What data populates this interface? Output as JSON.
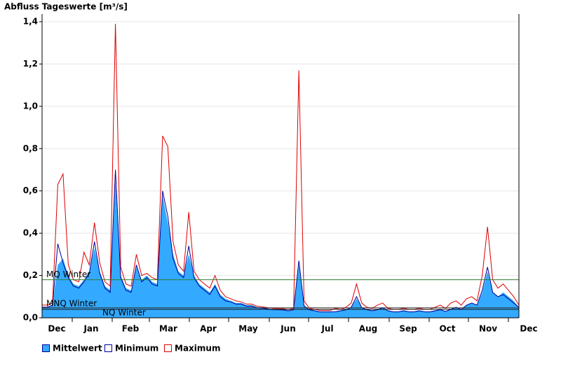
{
  "chart_data": {
    "type": "area",
    "title": "Abfluss Tageswerte [m³/s]",
    "month_labels": [
      "Dec",
      "Jan",
      "Feb",
      "Mar",
      "Apr",
      "May",
      "Jun",
      "Jul",
      "Aug",
      "Sep",
      "Oct",
      "Nov",
      "Dec"
    ],
    "ylim": [
      0,
      1.4
    ],
    "yticks": [
      {
        "value": 0,
        "label": "0,0"
      },
      {
        "value": 0.2,
        "label": "0,2"
      },
      {
        "value": 0.4,
        "label": "0,4"
      },
      {
        "value": 0.6,
        "label": "0,6"
      },
      {
        "value": 0.8,
        "label": "0,8"
      },
      {
        "value": 1.0,
        "label": "1,0"
      },
      {
        "value": 1.2,
        "label": "1,2"
      },
      {
        "value": 1.4,
        "label": "1,4"
      }
    ],
    "grid": true,
    "reference_lines": [
      {
        "label": "MQ Winter",
        "value": 0.18,
        "color": "#2e7d32"
      },
      {
        "label": "MNQ Winter",
        "value": 0.047,
        "color": "#333333"
      },
      {
        "label": "NQ Winter",
        "value": 0.04,
        "color": "#111111"
      }
    ],
    "series": [
      {
        "name": "Mittelwert",
        "color": "#33aaff",
        "values": [
          0.05,
          0.05,
          0.06,
          0.25,
          0.28,
          0.2,
          0.16,
          0.15,
          0.18,
          0.22,
          0.33,
          0.22,
          0.15,
          0.13,
          0.65,
          0.2,
          0.14,
          0.13,
          0.24,
          0.18,
          0.2,
          0.17,
          0.16,
          0.58,
          0.45,
          0.3,
          0.22,
          0.2,
          0.3,
          0.2,
          0.16,
          0.14,
          0.12,
          0.16,
          0.11,
          0.09,
          0.08,
          0.07,
          0.07,
          0.06,
          0.06,
          0.05,
          0.05,
          0.045,
          0.04,
          0.04,
          0.04,
          0.035,
          0.04,
          0.25,
          0.06,
          0.04,
          0.035,
          0.03,
          0.03,
          0.03,
          0.03,
          0.035,
          0.04,
          0.05,
          0.09,
          0.05,
          0.04,
          0.035,
          0.04,
          0.05,
          0.035,
          0.03,
          0.03,
          0.035,
          0.03,
          0.03,
          0.035,
          0.03,
          0.03,
          0.035,
          0.04,
          0.03,
          0.04,
          0.05,
          0.04,
          0.06,
          0.07,
          0.06,
          0.12,
          0.22,
          0.12,
          0.1,
          0.12,
          0.1,
          0.08,
          0.05
        ]
      },
      {
        "name": "Minimum",
        "color": "#000099",
        "values": [
          0.05,
          0.05,
          0.06,
          0.35,
          0.26,
          0.19,
          0.15,
          0.14,
          0.17,
          0.21,
          0.36,
          0.21,
          0.14,
          0.12,
          0.7,
          0.19,
          0.13,
          0.12,
          0.25,
          0.17,
          0.19,
          0.16,
          0.15,
          0.6,
          0.48,
          0.28,
          0.21,
          0.19,
          0.34,
          0.19,
          0.15,
          0.13,
          0.11,
          0.15,
          0.1,
          0.08,
          0.075,
          0.065,
          0.065,
          0.055,
          0.055,
          0.048,
          0.046,
          0.042,
          0.038,
          0.038,
          0.037,
          0.033,
          0.038,
          0.27,
          0.055,
          0.038,
          0.033,
          0.028,
          0.028,
          0.028,
          0.029,
          0.033,
          0.038,
          0.05,
          0.1,
          0.048,
          0.038,
          0.033,
          0.038,
          0.048,
          0.033,
          0.028,
          0.028,
          0.033,
          0.028,
          0.028,
          0.033,
          0.028,
          0.028,
          0.033,
          0.038,
          0.03,
          0.04,
          0.05,
          0.04,
          0.06,
          0.07,
          0.06,
          0.13,
          0.24,
          0.12,
          0.1,
          0.11,
          0.09,
          0.07,
          0.05
        ]
      },
      {
        "name": "Maximum",
        "color": "#dd0000",
        "values": [
          0.06,
          0.06,
          0.07,
          0.63,
          0.68,
          0.25,
          0.18,
          0.17,
          0.31,
          0.25,
          0.45,
          0.26,
          0.17,
          0.15,
          1.39,
          0.24,
          0.16,
          0.15,
          0.3,
          0.2,
          0.21,
          0.19,
          0.18,
          0.86,
          0.81,
          0.36,
          0.25,
          0.22,
          0.5,
          0.22,
          0.18,
          0.16,
          0.14,
          0.2,
          0.13,
          0.1,
          0.09,
          0.08,
          0.075,
          0.065,
          0.065,
          0.055,
          0.052,
          0.048,
          0.045,
          0.044,
          0.043,
          0.04,
          0.045,
          1.17,
          0.08,
          0.045,
          0.04,
          0.035,
          0.035,
          0.035,
          0.045,
          0.04,
          0.05,
          0.07,
          0.16,
          0.07,
          0.05,
          0.045,
          0.06,
          0.07,
          0.045,
          0.04,
          0.04,
          0.045,
          0.04,
          0.04,
          0.045,
          0.04,
          0.04,
          0.05,
          0.06,
          0.045,
          0.07,
          0.08,
          0.06,
          0.09,
          0.1,
          0.08,
          0.2,
          0.43,
          0.18,
          0.14,
          0.16,
          0.13,
          0.1,
          0.06
        ]
      }
    ]
  }
}
